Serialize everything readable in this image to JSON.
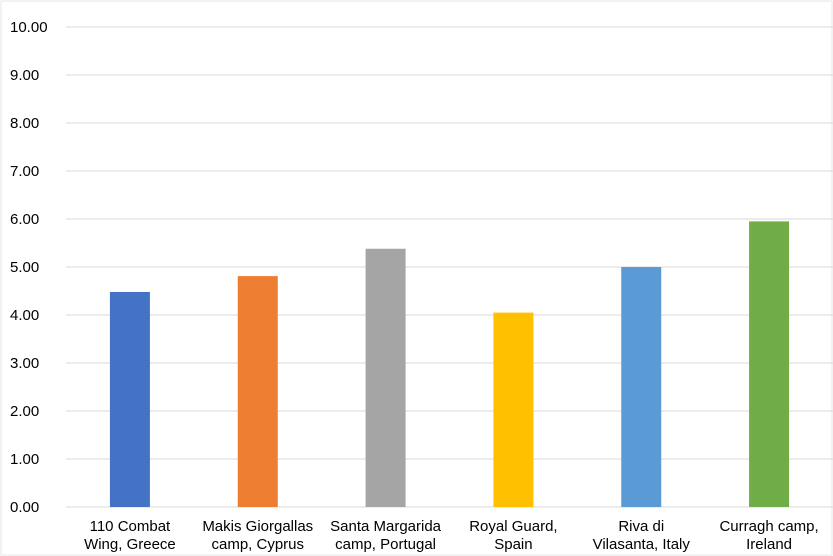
{
  "chart_data": {
    "type": "bar",
    "categories": [
      [
        "110 Combat",
        "Wing, Greece"
      ],
      [
        "Makis Giorgallas",
        "camp, Cyprus"
      ],
      [
        "Santa Margarida",
        "camp, Portugal"
      ],
      [
        "Royal Guard,",
        "Spain"
      ],
      [
        "Riva di",
        "Vilasanta, Italy"
      ],
      [
        "Curragh camp,",
        "Ireland"
      ]
    ],
    "values": [
      4.48,
      4.81,
      5.38,
      4.05,
      5.0,
      5.95
    ],
    "colors": [
      "#4472c4",
      "#ed7d31",
      "#a5a5a5",
      "#ffc000",
      "#5b9bd5",
      "#70ad47"
    ],
    "ylim": [
      0,
      10
    ],
    "yticks": [
      "0.00",
      "1.00",
      "2.00",
      "3.00",
      "4.00",
      "5.00",
      "6.00",
      "7.00",
      "8.00",
      "9.00",
      "10.00"
    ],
    "grid": true,
    "legend": "none"
  }
}
